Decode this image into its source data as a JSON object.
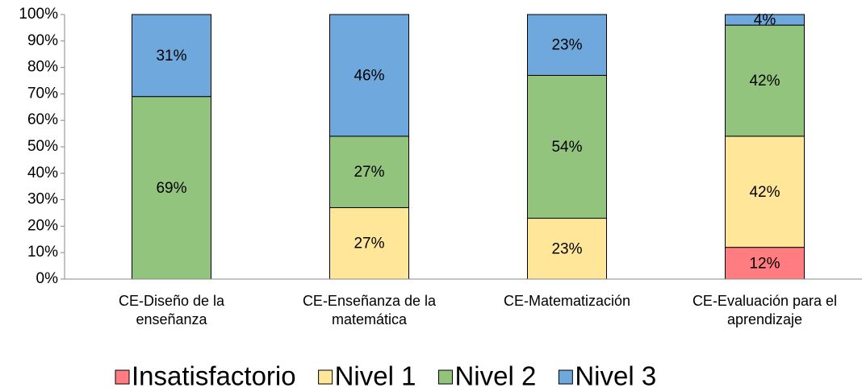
{
  "chart_data": {
    "type": "stacked_bar",
    "categories": [
      "CE-Diseño de la enseñanza",
      "CE-Enseñanza de la matemática",
      "CE-Matematización",
      "CE-Evaluación para el aprendizaje"
    ],
    "series": [
      {
        "name": "Insatisfactorio",
        "color": "#ff7c80",
        "values": [
          0,
          0,
          0,
          12
        ],
        "value_labels": [
          null,
          null,
          null,
          "12%"
        ]
      },
      {
        "name": "Nivel 1",
        "color": "#ffe699",
        "values": [
          0,
          27,
          23,
          42
        ],
        "value_labels": [
          null,
          "27%",
          "23%",
          "42%"
        ]
      },
      {
        "name": "Nivel 2",
        "color": "#93c47d",
        "values": [
          69,
          27,
          54,
          42
        ],
        "value_labels": [
          "69%",
          "27%",
          "54%",
          "42%"
        ]
      },
      {
        "name": "Nivel 3",
        "color": "#6fa8dc",
        "values": [
          31,
          46,
          23,
          4
        ],
        "value_labels": [
          "31%",
          "46%",
          "23%",
          "4%"
        ]
      }
    ],
    "ylim": [
      0,
      100
    ],
    "yticks": [
      {
        "value": 0,
        "label": "0%"
      },
      {
        "value": 10,
        "label": "10%"
      },
      {
        "value": 20,
        "label": "20%"
      },
      {
        "value": 30,
        "label": "30%"
      },
      {
        "value": 40,
        "label": "40%"
      },
      {
        "value": 50,
        "label": "50%"
      },
      {
        "value": 60,
        "label": "60%"
      },
      {
        "value": 70,
        "label": "70%"
      },
      {
        "value": 80,
        "label": "80%"
      },
      {
        "value": 90,
        "label": "90%"
      },
      {
        "value": 100,
        "label": "100%"
      }
    ],
    "grid": false,
    "legend": "bottom"
  }
}
